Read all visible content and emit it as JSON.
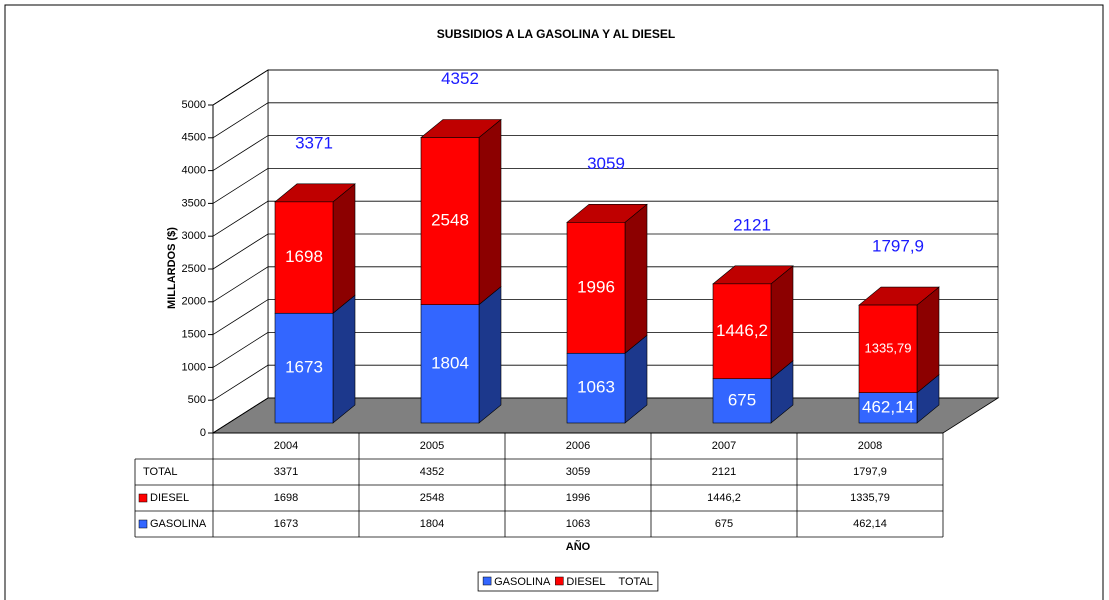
{
  "chart_data": {
    "type": "bar3d_stacked",
    "title": "SUBSIDIOS A LA GASOLINA Y AL DIESEL",
    "y_label": "MILLARDOS ($)",
    "x_label": "AÑO",
    "categories": [
      "2004",
      "2005",
      "2006",
      "2007",
      "2008"
    ],
    "series": [
      {
        "name": "GASOLINA",
        "color": "#3366ff",
        "values": [
          1673,
          1804,
          1063,
          675,
          462.14
        ],
        "value_labels": [
          "1673",
          "1804",
          "1063",
          "675",
          "462,14"
        ]
      },
      {
        "name": "DIESEL",
        "color": "#ff0000",
        "values": [
          1698,
          2548,
          1996,
          1446.2,
          1335.79
        ],
        "value_labels": [
          "1698",
          "2548",
          "1996",
          "1446,2",
          "1335,79"
        ]
      },
      {
        "name": "TOTAL",
        "color": "#1a1aff",
        "values": [
          3371,
          4352,
          3059,
          2121,
          1797.9
        ],
        "value_labels": [
          "3371",
          "4352",
          "3059",
          "2121",
          "1797,9"
        ],
        "stacked": false
      }
    ],
    "ylim": [
      0,
      5000
    ],
    "yticks": [
      0,
      500,
      1000,
      1500,
      2000,
      2500,
      3000,
      3500,
      4000,
      4500,
      5000
    ],
    "grid": true,
    "legend": "bottom",
    "data_table": true
  }
}
